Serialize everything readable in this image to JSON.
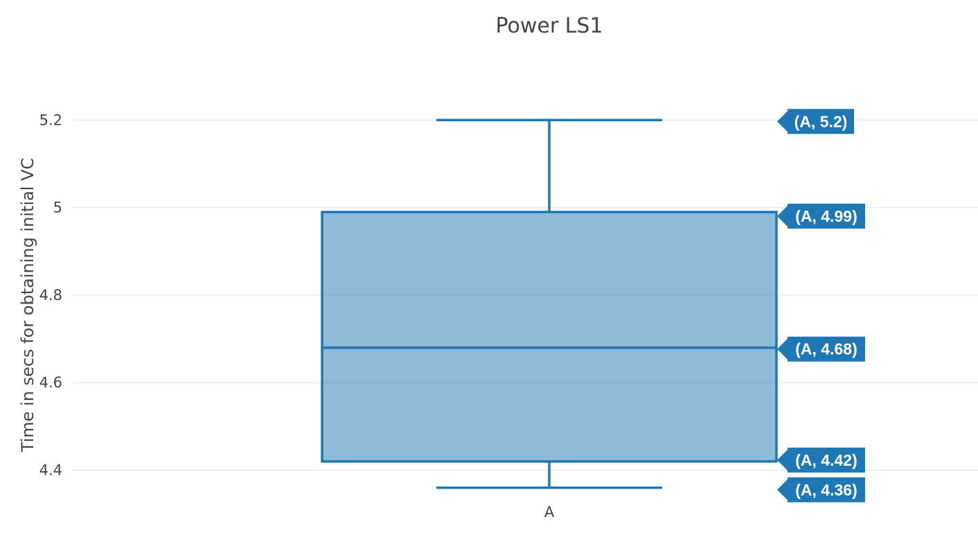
{
  "chart_data": {
    "type": "box",
    "title": "Power LS1",
    "xlabel": "",
    "ylabel": "Time in secs for obtaining initial VC",
    "categories": [
      "A"
    ],
    "series": [
      {
        "category": "A",
        "min": 4.36,
        "q1": 4.42,
        "median": 4.68,
        "q3": 4.99,
        "max": 5.2
      }
    ],
    "yticks": [
      4.4,
      4.6,
      4.8,
      5,
      5.2
    ],
    "ytick_labels": [
      "4.4",
      "4.6",
      "4.8",
      "5",
      "5.2"
    ],
    "ylim": [
      4.3375,
      5.3002
    ],
    "grid": true,
    "legend": "none",
    "hover_labels": [
      "(A, 5.2)",
      "(A, 4.99)",
      "(A, 4.68)",
      "(A, 4.42)",
      "(A, 4.36)"
    ],
    "colors": {
      "line": "#1f77b4",
      "fill": "#1f77b4",
      "grid": "#e6e6e6",
      "text": "#444444",
      "label_text": "#ffffff"
    }
  }
}
